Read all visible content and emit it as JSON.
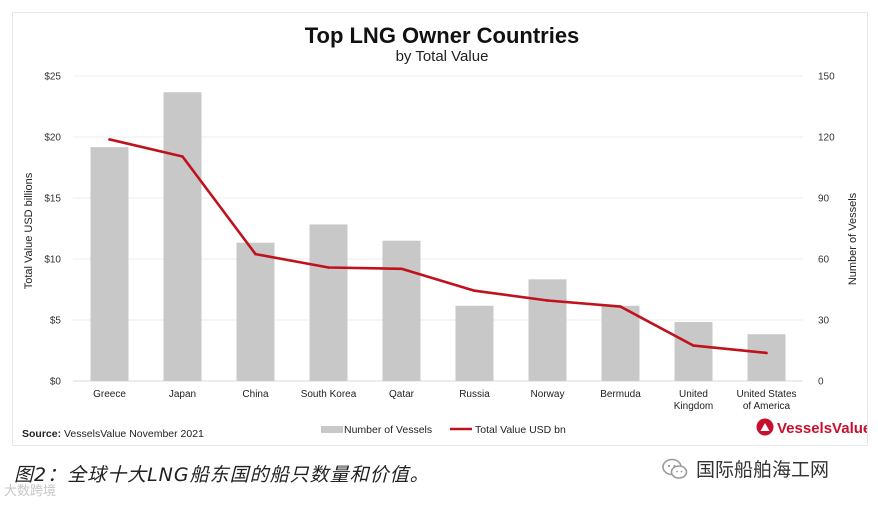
{
  "chart_data": {
    "type": "bar+line",
    "title": "Top LNG Owner Countries",
    "subtitle": "by Total Value",
    "categories": [
      "Greece",
      "Japan",
      "China",
      "South Korea",
      "Qatar",
      "Russia",
      "Norway",
      "Bermuda",
      "United Kingdom",
      "United States of America"
    ],
    "category_lines": [
      [
        "Greece"
      ],
      [
        "Japan"
      ],
      [
        "China"
      ],
      [
        "South Korea"
      ],
      [
        "Qatar"
      ],
      [
        "Russia"
      ],
      [
        "Norway"
      ],
      [
        "Bermuda"
      ],
      [
        "United",
        "Kingdom"
      ],
      [
        "United States",
        "of America"
      ]
    ],
    "series": [
      {
        "name": "Number of Vessels",
        "kind": "bar",
        "axis": "right",
        "color": "#c8c8c8",
        "values": [
          115,
          142,
          68,
          77,
          69,
          37,
          50,
          37,
          29,
          23
        ]
      },
      {
        "name": "Total Value USD bn",
        "kind": "line",
        "axis": "left",
        "color": "#c0121c",
        "values": [
          19.8,
          18.4,
          10.4,
          9.3,
          9.2,
          7.4,
          6.6,
          6.1,
          2.9,
          2.3
        ]
      }
    ],
    "ylabel_left": "Total Value USD billions",
    "ylabel_right": "Number of Vessels",
    "ylim_left": [
      0,
      25
    ],
    "ylim_right": [
      0,
      150
    ],
    "yticks_left": [
      "$0",
      "$5",
      "$10",
      "$15",
      "$20",
      "$25"
    ],
    "yticks_right": [
      "0",
      "30",
      "60",
      "90",
      "120",
      "150"
    ],
    "legend": [
      "Number of Vessels",
      "Total Value USD bn"
    ],
    "legend_position": "bottom-center",
    "grid": true
  },
  "source": {
    "label": "Source:",
    "text": " VesselsValue November 2021"
  },
  "logo": {
    "text": "VesselsValue",
    "color": "#c8102e"
  },
  "caption": "图2：全球十大LNG船东国的船只数量和价值。",
  "watermark_left": "大数跨境",
  "watermark_right": "国际船舶海工网"
}
